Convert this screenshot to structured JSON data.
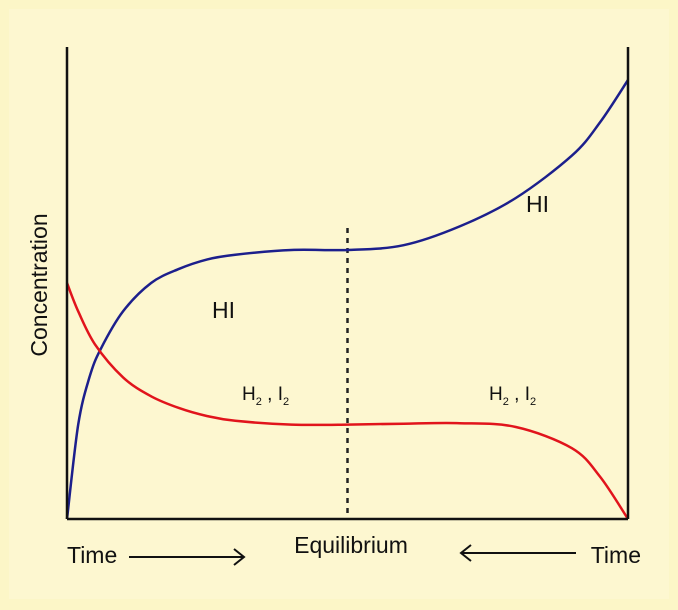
{
  "colors": {
    "background": "#fcf6c7",
    "frame": "#fdf7d0",
    "axis": "#111111",
    "hi_curve": "#1c1f8c",
    "h2i2_curve": "#e1141c",
    "divider": "#222222"
  },
  "chart_data": {
    "type": "line",
    "title": "",
    "ylabel": "Concentration",
    "xlabel": "Equilibrium",
    "x_left_label": "Time",
    "x_right_label": "Time",
    "xlim": [
      0,
      1
    ],
    "ylim": [
      0,
      1
    ],
    "grid": false,
    "divider_x": 0.5,
    "series": [
      {
        "key": "hi",
        "color_key": "hi_curve",
        "points": [
          [
            0,
            0
          ],
          [
            0.02,
            0.2
          ],
          [
            0.04,
            0.3
          ],
          [
            0.06,
            0.36
          ],
          [
            0.1,
            0.44
          ],
          [
            0.15,
            0.5
          ],
          [
            0.2,
            0.53
          ],
          [
            0.25,
            0.55
          ],
          [
            0.3,
            0.56
          ],
          [
            0.4,
            0.57
          ],
          [
            0.5,
            0.57
          ],
          [
            0.6,
            0.58
          ],
          [
            0.7,
            0.62
          ],
          [
            0.8,
            0.68
          ],
          [
            0.9,
            0.77
          ],
          [
            0.95,
            0.84
          ],
          [
            1,
            0.93
          ]
        ]
      },
      {
        "key": "h2i2",
        "color_key": "h2i2_curve",
        "points": [
          [
            0,
            0.5
          ],
          [
            0.02,
            0.44
          ],
          [
            0.05,
            0.37
          ],
          [
            0.1,
            0.3
          ],
          [
            0.15,
            0.26
          ],
          [
            0.2,
            0.235
          ],
          [
            0.25,
            0.218
          ],
          [
            0.3,
            0.208
          ],
          [
            0.4,
            0.2
          ],
          [
            0.5,
            0.2
          ],
          [
            0.6,
            0.202
          ],
          [
            0.7,
            0.203
          ],
          [
            0.8,
            0.195
          ],
          [
            0.9,
            0.15
          ],
          [
            0.95,
            0.09
          ],
          [
            1,
            0
          ]
        ]
      }
    ],
    "annotations": [
      {
        "key": "hi_left",
        "text": "HI"
      },
      {
        "key": "hi_right",
        "text": "HI"
      },
      {
        "key": "h2i2_left",
        "parts": [
          "H",
          "2",
          " , I",
          "2"
        ]
      },
      {
        "key": "h2i2_right",
        "parts": [
          "H",
          "2",
          " ,  I",
          "2"
        ]
      }
    ]
  }
}
